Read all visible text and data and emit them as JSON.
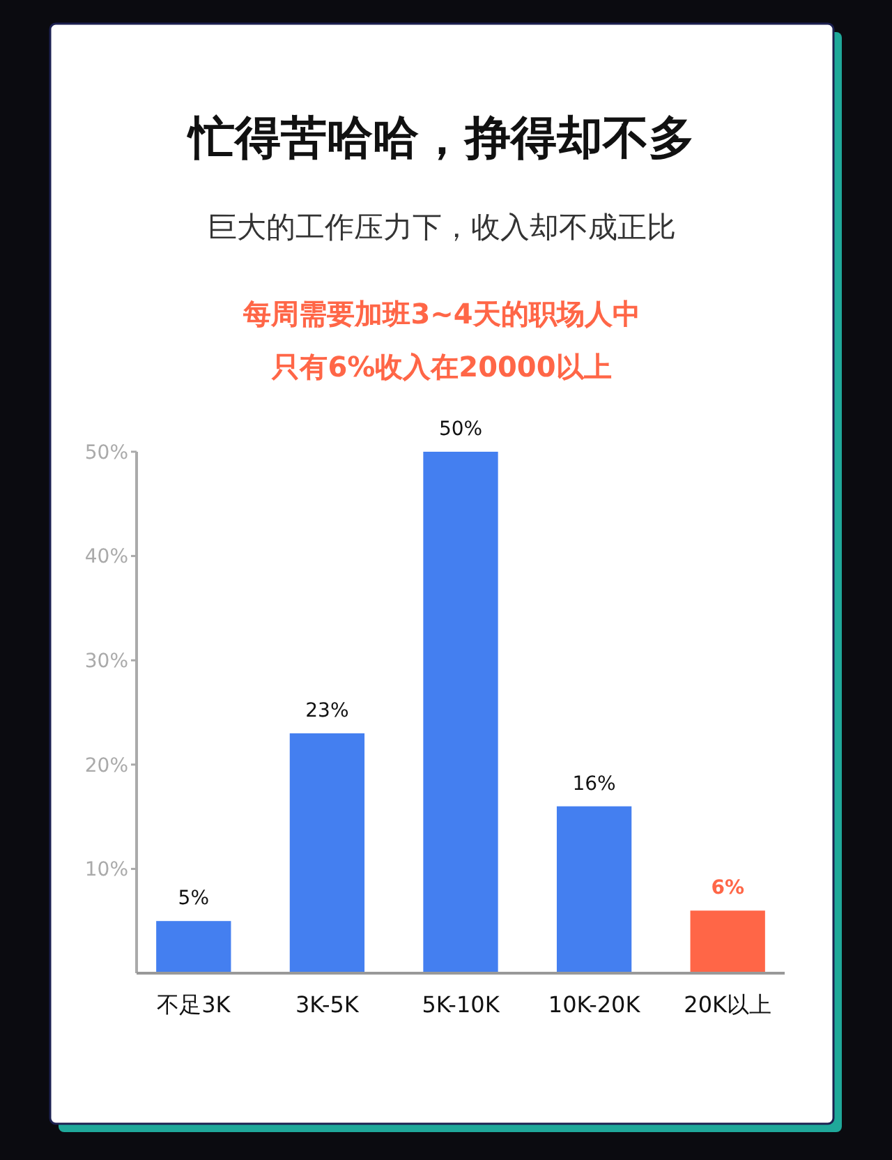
{
  "chart_data": {
    "type": "bar",
    "title": "忙得苦哈哈，挣得却不多",
    "subtitle": "巨大的工作压力下，收入却不成正比",
    "annotations": [
      "每周需要加班3~4天的职场人中",
      "只有6%收入在20000以上"
    ],
    "categories": [
      "不足3K",
      "3K-5K",
      "5K-10K",
      "10K-20K",
      "20K以上"
    ],
    "values": [
      5,
      23,
      50,
      16,
      6
    ],
    "colors": [
      "#447ff0",
      "#447ff0",
      "#447ff0",
      "#447ff0",
      "#ff6647"
    ],
    "value_labels": [
      "5%",
      "23%",
      "50%",
      "16%",
      "6%"
    ],
    "ylim": [
      0,
      50
    ],
    "yticks": [
      {
        "value": 10,
        "label": "10%"
      },
      {
        "value": 20,
        "label": "20%"
      },
      {
        "value": 30,
        "label": "30%"
      },
      {
        "value": 40,
        "label": "40%"
      },
      {
        "value": 50,
        "label": "50%"
      }
    ]
  }
}
